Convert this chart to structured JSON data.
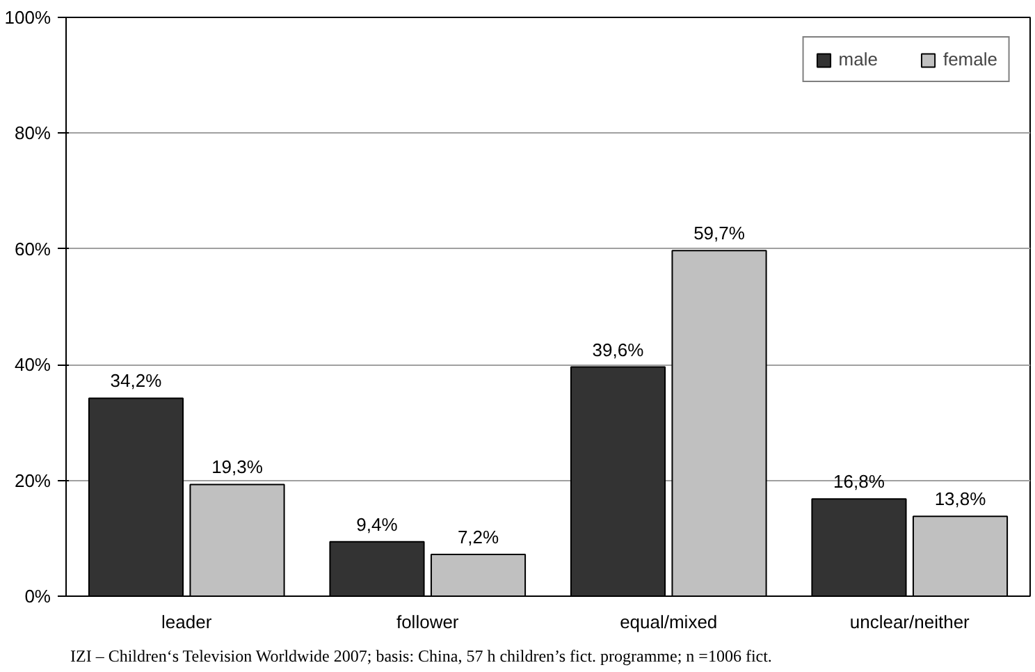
{
  "chart_data": {
    "type": "bar",
    "categories": [
      "leader",
      "follower",
      "equal/mixed",
      "unclear/neither"
    ],
    "series": [
      {
        "name": "male",
        "color": "#333333",
        "values": [
          34.2,
          9.4,
          39.6,
          16.8
        ],
        "value_labels": [
          "34,2%",
          "9,4%",
          "39,6%",
          "16,8%"
        ]
      },
      {
        "name": "female",
        "color": "#c0c0c0",
        "values": [
          19.3,
          7.2,
          59.7,
          13.8
        ],
        "value_labels": [
          "19,3%",
          "7,2%",
          "59,7%",
          "13,8%"
        ]
      }
    ],
    "ylim": [
      0,
      100
    ],
    "yticks": [
      {
        "value": 0,
        "label": "0%"
      },
      {
        "value": 20,
        "label": "20%"
      },
      {
        "value": 40,
        "label": "40%"
      },
      {
        "value": 60,
        "label": "60%"
      },
      {
        "value": 80,
        "label": "80%"
      },
      {
        "value": 100,
        "label": "100%"
      }
    ],
    "grid": "y",
    "legend": "top right",
    "annotations": [
      "IZI – Children‘s Television Worldwide 2007; basis: China, 57 h children’s fict. programme; n =1006 fict."
    ]
  }
}
